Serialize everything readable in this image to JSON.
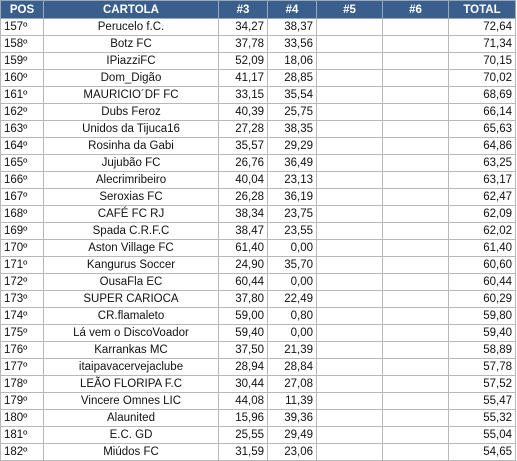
{
  "header_color": "#3b5f8d",
  "columns": {
    "pos": "POS",
    "cartola": "CARTOLA",
    "r3": "#3",
    "r4": "#4",
    "r5": "#5",
    "r6": "#6",
    "total": "TOTAL"
  },
  "rows": [
    {
      "pos": "157º",
      "cartola": "Perucelo f.C.",
      "r3": "34,27",
      "r4": "38,37",
      "r5": "",
      "r6": "",
      "total": "72,64"
    },
    {
      "pos": "158º",
      "cartola": "Botz FC",
      "r3": "37,78",
      "r4": "33,56",
      "r5": "",
      "r6": "",
      "total": "71,34"
    },
    {
      "pos": "159º",
      "cartola": "IPiazziFC",
      "r3": "52,09",
      "r4": "18,06",
      "r5": "",
      "r6": "",
      "total": "70,15"
    },
    {
      "pos": "160º",
      "cartola": "Dom_Digão",
      "r3": "41,17",
      "r4": "28,85",
      "r5": "",
      "r6": "",
      "total": "70,02"
    },
    {
      "pos": "161º",
      "cartola": "MAURICIO´DF FC",
      "r3": "33,15",
      "r4": "35,54",
      "r5": "",
      "r6": "",
      "total": "68,69"
    },
    {
      "pos": "162º",
      "cartola": "Dubs Feroz",
      "r3": "40,39",
      "r4": "25,75",
      "r5": "",
      "r6": "",
      "total": "66,14"
    },
    {
      "pos": "163º",
      "cartola": "Unidos da Tijuca16",
      "r3": "27,28",
      "r4": "38,35",
      "r5": "",
      "r6": "",
      "total": "65,63"
    },
    {
      "pos": "164º",
      "cartola": "Rosinha da Gabi",
      "r3": "35,57",
      "r4": "29,29",
      "r5": "",
      "r6": "",
      "total": "64,86"
    },
    {
      "pos": "165º",
      "cartola": "Jujubão FC",
      "r3": "26,76",
      "r4": "36,49",
      "r5": "",
      "r6": "",
      "total": "63,25"
    },
    {
      "pos": "166º",
      "cartola": "Alecrimribeiro",
      "r3": "40,04",
      "r4": "23,13",
      "r5": "",
      "r6": "",
      "total": "63,17"
    },
    {
      "pos": "167º",
      "cartola": "Seroxias FC",
      "r3": "26,28",
      "r4": "36,19",
      "r5": "",
      "r6": "",
      "total": "62,47"
    },
    {
      "pos": "168º",
      "cartola": "CAFÉ FC RJ",
      "r3": "38,34",
      "r4": "23,75",
      "r5": "",
      "r6": "",
      "total": "62,09"
    },
    {
      "pos": "169º",
      "cartola": "Spada C.R.F.C",
      "r3": "38,47",
      "r4": "23,55",
      "r5": "",
      "r6": "",
      "total": "62,02"
    },
    {
      "pos": "170º",
      "cartola": "Aston Village FC",
      "r3": "61,40",
      "r4": "0,00",
      "r5": "",
      "r6": "",
      "total": "61,40"
    },
    {
      "pos": "171º",
      "cartola": "Kangurus Soccer",
      "r3": "24,90",
      "r4": "35,70",
      "r5": "",
      "r6": "",
      "total": "60,60"
    },
    {
      "pos": "172º",
      "cartola": "OusaFla EC",
      "r3": "60,44",
      "r4": "0,00",
      "r5": "",
      "r6": "",
      "total": "60,44"
    },
    {
      "pos": "173º",
      "cartola": "SUPER CARIOCA",
      "r3": "37,80",
      "r4": "22,49",
      "r5": "",
      "r6": "",
      "total": "60,29"
    },
    {
      "pos": "174º",
      "cartola": "CR.flamaleto",
      "r3": "59,00",
      "r4": "0,80",
      "r5": "",
      "r6": "",
      "total": "59,80"
    },
    {
      "pos": "175º",
      "cartola": "Lá vem o DiscoVoador",
      "r3": "59,40",
      "r4": "0,00",
      "r5": "",
      "r6": "",
      "total": "59,40"
    },
    {
      "pos": "176º",
      "cartola": "Karrankas MC",
      "r3": "37,50",
      "r4": "21,39",
      "r5": "",
      "r6": "",
      "total": "58,89"
    },
    {
      "pos": "177º",
      "cartola": "itaipavacervejaclube",
      "r3": "28,94",
      "r4": "28,84",
      "r5": "",
      "r6": "",
      "total": "57,78"
    },
    {
      "pos": "178º",
      "cartola": "LEÃO FLORIPA F.C",
      "r3": "30,44",
      "r4": "27,08",
      "r5": "",
      "r6": "",
      "total": "57,52"
    },
    {
      "pos": "179º",
      "cartola": "Vincere Omnes LIC",
      "r3": "44,08",
      "r4": "11,39",
      "r5": "",
      "r6": "",
      "total": "55,47"
    },
    {
      "pos": "180º",
      "cartola": "Alaunited",
      "r3": "15,96",
      "r4": "39,36",
      "r5": "",
      "r6": "",
      "total": "55,32"
    },
    {
      "pos": "181º",
      "cartola": "E.C. GD",
      "r3": "25,55",
      "r4": "29,49",
      "r5": "",
      "r6": "",
      "total": "55,04"
    },
    {
      "pos": "182º",
      "cartola": "Miúdos FC",
      "r3": "31,59",
      "r4": "23,06",
      "r5": "",
      "r6": "",
      "total": "54,65"
    }
  ]
}
